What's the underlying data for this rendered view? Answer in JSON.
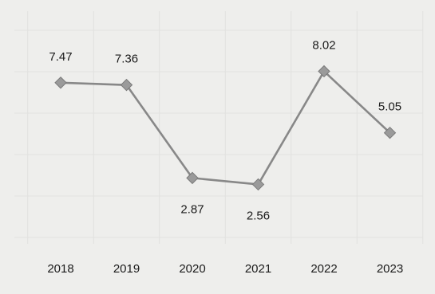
{
  "chart_data": {
    "type": "line",
    "title": "",
    "xlabel": "",
    "ylabel": "",
    "categories": [
      "2018",
      "2019",
      "2020",
      "2021",
      "2022",
      "2023"
    ],
    "series": [
      {
        "values": [
          7.47,
          7.36,
          2.87,
          2.56,
          8.02,
          5.05
        ],
        "labels": [
          "7.47",
          "7.36",
          "2.87",
          "2.56",
          "8.02",
          "5.05"
        ],
        "label_position": [
          "above",
          "above",
          "below",
          "below",
          "above",
          "above"
        ]
      }
    ],
    "ylim": [
      0,
      10
    ],
    "grid": true,
    "legend": "none",
    "colors": {
      "line": "#888888",
      "marker": "#9a9a9a",
      "grid": "#e1e1df",
      "background": "#eeeeec",
      "text": "#1a1a1a"
    }
  }
}
